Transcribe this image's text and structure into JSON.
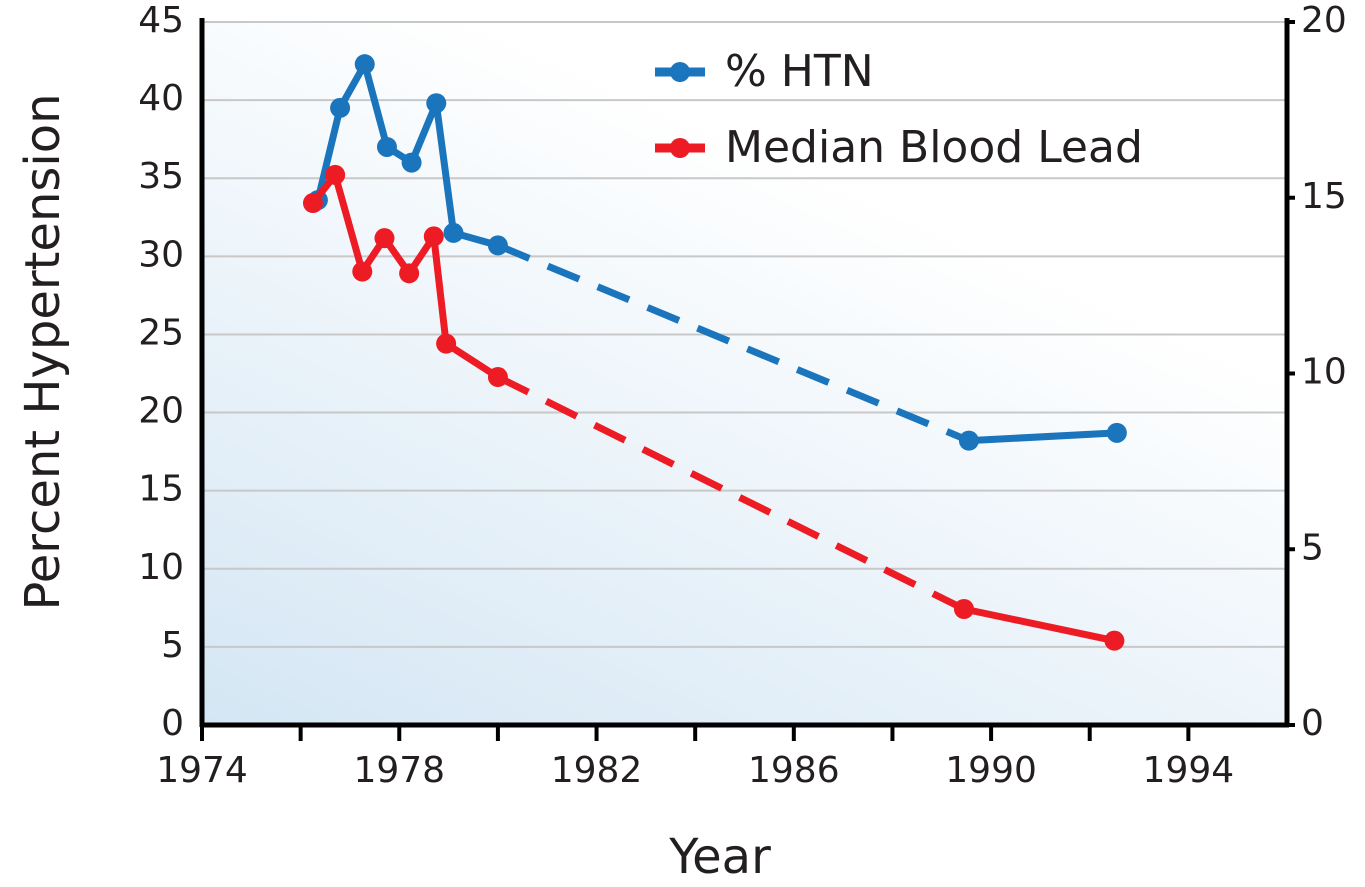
{
  "chart_data": {
    "type": "line",
    "xlabel": "Year",
    "ylabel": "Percent Hypertension",
    "xlim": [
      1974,
      1996
    ],
    "xticks": [
      1974,
      1978,
      1982,
      1986,
      1990,
      1994
    ],
    "xminor_ticks": [
      1976,
      1980,
      1984,
      1988,
      1992
    ],
    "ylim": [
      0,
      45
    ],
    "yticks": [
      0,
      5,
      10,
      15,
      20,
      25,
      30,
      35,
      40,
      45
    ],
    "y2lim": [
      0,
      20
    ],
    "y2ticks": [
      0,
      5,
      10,
      15,
      20
    ],
    "grid": true,
    "legend": "upper center",
    "series": [
      {
        "name": "% HTN",
        "color": "#1b75bc",
        "dashed_segment": 7,
        "x": [
          1976.35,
          1976.8,
          1977.3,
          1977.75,
          1978.25,
          1978.75,
          1979.1,
          1980.0,
          1989.55,
          1992.55
        ],
        "values": [
          33.6,
          39.5,
          42.3,
          37.0,
          36.0,
          39.8,
          31.5,
          30.7,
          18.2,
          18.7
        ]
      },
      {
        "name": "Median Blood Lead",
        "color": "#ed1c24",
        "axis": "y2",
        "dashed_segment": 7,
        "x": [
          1976.25,
          1976.7,
          1977.25,
          1977.7,
          1978.2,
          1978.7,
          1978.95,
          1980.0,
          1989.45,
          1992.5
        ],
        "values": [
          14.85,
          15.65,
          12.9,
          13.85,
          12.85,
          13.9,
          10.85,
          9.9,
          3.3,
          2.4
        ]
      }
    ]
  }
}
